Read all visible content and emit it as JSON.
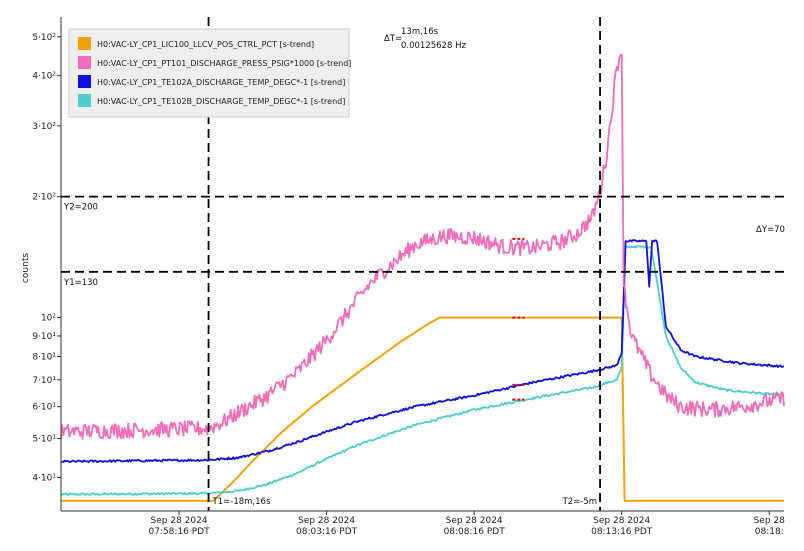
{
  "chart_data": {
    "type": "line",
    "ylabel": "counts",
    "y_scale": "log",
    "ylim": [
      33,
      560
    ],
    "xlim": [
      "2024-09-28 07:54:16",
      "2024-09-28 08:18:46"
    ],
    "legend_position": "top-left",
    "y_ticks": [
      {
        "value": 40,
        "label": "4·10¹"
      },
      {
        "value": 50,
        "label": "5·10¹"
      },
      {
        "value": 60,
        "label": "6·10¹"
      },
      {
        "value": 70,
        "label": "7·10¹"
      },
      {
        "value": 80,
        "label": "8·10¹"
      },
      {
        "value": 90,
        "label": "9·10¹"
      },
      {
        "value": 100,
        "label": "10²"
      },
      {
        "value": 200,
        "label": "2·10²"
      },
      {
        "value": 300,
        "label": "3·10²"
      },
      {
        "value": 400,
        "label": "4·10²"
      },
      {
        "value": 500,
        "label": "5·10²"
      }
    ],
    "x_ticks": [
      {
        "value": "2024-09-28 07:58:16",
        "line1": "Sep 28 2024",
        "line2": "07:58:16 PDT"
      },
      {
        "value": "2024-09-28 08:03:16",
        "line1": "Sep 28 2024",
        "line2": "08:03:16 PDT"
      },
      {
        "value": "2024-09-28 08:08:16",
        "line1": "Sep 28 2024",
        "line2": "08:08:16 PDT"
      },
      {
        "value": "2024-09-28 08:13:16",
        "line1": "Sep 28 2024",
        "line2": "08:13:16 PDT"
      },
      {
        "value": "2024-09-28 08:18:16",
        "line1": "Sep 28",
        "line2": "08:18:"
      }
    ],
    "series": [
      {
        "name": "H0:VAC-LY_CP1_LIC100_LLCV_POS_CTRL_PCT [s-trend]",
        "color": "#f5a20a",
        "noise": 0,
        "points": [
          [
            "2024-09-28 07:54:16",
            35
          ],
          [
            "2024-09-28 07:59:16",
            35
          ],
          [
            "2024-09-28 07:59:26",
            35
          ],
          [
            "2024-09-28 08:00:06",
            39
          ],
          [
            "2024-09-28 08:00:46",
            44
          ],
          [
            "2024-09-28 08:01:46",
            52
          ],
          [
            "2024-09-28 08:02:46",
            60
          ],
          [
            "2024-09-28 08:03:46",
            68
          ],
          [
            "2024-09-28 08:04:46",
            77
          ],
          [
            "2024-09-28 08:05:46",
            87
          ],
          [
            "2024-09-28 08:06:46",
            97
          ],
          [
            "2024-09-28 08:07:06",
            100
          ],
          [
            "2024-09-28 08:13:16",
            100
          ],
          [
            "2024-09-28 08:13:22",
            35
          ],
          [
            "2024-09-28 08:18:46",
            35
          ]
        ]
      },
      {
        "name": "H0:VAC-LY_CP1_PT101_DISCHARGE_PRESS_PSIG*1000 [s-trend]",
        "color": "#f56cb9",
        "noise": 0.045,
        "points": [
          [
            "2024-09-28 07:54:16",
            52
          ],
          [
            "2024-09-28 07:59:16",
            53
          ],
          [
            "2024-09-28 07:59:46",
            55
          ],
          [
            "2024-09-28 08:00:16",
            58
          ],
          [
            "2024-09-28 08:01:16",
            64
          ],
          [
            "2024-09-28 08:02:16",
            73
          ],
          [
            "2024-09-28 08:03:16",
            88
          ],
          [
            "2024-09-28 08:03:46",
            98
          ],
          [
            "2024-09-28 08:04:16",
            110
          ],
          [
            "2024-09-28 08:04:46",
            122
          ],
          [
            "2024-09-28 08:05:16",
            132
          ],
          [
            "2024-09-28 08:06:16",
            152
          ],
          [
            "2024-09-28 08:07:16",
            160
          ],
          [
            "2024-09-28 08:08:16",
            158
          ],
          [
            "2024-09-28 08:09:16",
            150
          ],
          [
            "2024-09-28 08:10:16",
            149
          ],
          [
            "2024-09-28 08:11:16",
            155
          ],
          [
            "2024-09-28 08:11:46",
            162
          ],
          [
            "2024-09-28 08:12:16",
            178
          ],
          [
            "2024-09-28 08:12:32",
            205
          ],
          [
            "2024-09-28 08:12:46",
            258
          ],
          [
            "2024-09-28 08:12:56",
            330
          ],
          [
            "2024-09-28 08:13:06",
            420
          ],
          [
            "2024-09-28 08:13:16",
            470
          ],
          [
            "2024-09-28 08:13:20",
            120
          ],
          [
            "2024-09-28 08:13:36",
            90
          ],
          [
            "2024-09-28 08:14:16",
            72
          ],
          [
            "2024-09-28 08:14:46",
            64
          ],
          [
            "2024-09-28 08:15:16",
            60
          ],
          [
            "2024-09-28 08:16:16",
            59
          ],
          [
            "2024-09-28 08:17:16",
            60
          ],
          [
            "2024-09-28 08:18:46",
            63
          ]
        ]
      },
      {
        "name": "H0:VAC-LY_CP1_TE102A_DISCHARGE_TEMP_DEGC*-1 [s-trend]",
        "color": "#1010e0",
        "noise": 0.006,
        "points": [
          [
            "2024-09-28 07:54:16",
            43.8
          ],
          [
            "2024-09-28 07:59:16",
            44.2
          ],
          [
            "2024-09-28 08:00:16",
            44.8
          ],
          [
            "2024-09-28 08:01:16",
            46.5
          ],
          [
            "2024-09-28 08:02:16",
            49
          ],
          [
            "2024-09-28 08:03:16",
            52
          ],
          [
            "2024-09-28 08:04:16",
            55
          ],
          [
            "2024-09-28 08:05:16",
            57.5
          ],
          [
            "2024-09-28 08:06:16",
            60
          ],
          [
            "2024-09-28 08:08:16",
            64
          ],
          [
            "2024-09-28 08:10:16",
            69
          ],
          [
            "2024-09-28 08:12:16",
            73.5
          ],
          [
            "2024-09-28 08:13:06",
            76
          ],
          [
            "2024-09-28 08:13:16",
            82
          ],
          [
            "2024-09-28 08:13:24",
            155
          ],
          [
            "2024-09-28 08:14:06",
            155
          ],
          [
            "2024-09-28 08:14:12",
            120
          ],
          [
            "2024-09-28 08:14:18",
            155
          ],
          [
            "2024-09-28 08:14:28",
            155
          ],
          [
            "2024-09-28 08:14:46",
            95
          ],
          [
            "2024-09-28 08:15:16",
            83
          ],
          [
            "2024-09-28 08:15:46",
            80
          ],
          [
            "2024-09-28 08:17:16",
            77
          ],
          [
            "2024-09-28 08:18:46",
            75.5
          ]
        ]
      },
      {
        "name": "H0:VAC-LY_CP1_TE102B_DISCHARGE_TEMP_DEGC*-1 [s-trend]",
        "color": "#4dd0cc",
        "noise": 0.006,
        "points": [
          [
            "2024-09-28 07:54:16",
            36.3
          ],
          [
            "2024-09-28 07:59:16",
            36.5
          ],
          [
            "2024-09-28 08:00:16",
            37
          ],
          [
            "2024-09-28 08:01:16",
            38.5
          ],
          [
            "2024-09-28 08:02:16",
            41
          ],
          [
            "2024-09-28 08:03:16",
            44.5
          ],
          [
            "2024-09-28 08:04:16",
            48
          ],
          [
            "2024-09-28 08:05:16",
            51
          ],
          [
            "2024-09-28 08:06:16",
            54
          ],
          [
            "2024-09-28 08:08:16",
            59
          ],
          [
            "2024-09-28 08:10:16",
            63
          ],
          [
            "2024-09-28 08:12:16",
            67
          ],
          [
            "2024-09-28 08:13:06",
            70
          ],
          [
            "2024-09-28 08:13:16",
            75
          ],
          [
            "2024-09-28 08:13:24",
            150
          ],
          [
            "2024-09-28 08:14:16",
            150
          ],
          [
            "2024-09-28 08:14:46",
            90
          ],
          [
            "2024-09-28 08:15:16",
            75
          ],
          [
            "2024-09-28 08:15:46",
            69
          ],
          [
            "2024-09-28 08:16:46",
            66
          ],
          [
            "2024-09-28 08:18:46",
            64
          ]
        ]
      }
    ],
    "gap_markers": [
      {
        "x": "2024-09-28 08:09:46",
        "y": 157,
        "color": "#e00000"
      },
      {
        "x": "2024-09-28 08:09:46",
        "y": 100,
        "color": "#e00000"
      },
      {
        "x": "2024-09-28 08:09:46",
        "y": 68,
        "color": "#e00000"
      },
      {
        "x": "2024-09-28 08:09:46",
        "y": 62.5,
        "color": "#e00000"
      }
    ],
    "cursors": {
      "t1": {
        "x": "2024-09-28 07:59:16",
        "label": "T1=-18m,16s"
      },
      "t2": {
        "x": "2024-09-28 08:12:32",
        "label": "T2=-5m"
      },
      "y1": {
        "value": 130,
        "label": "Y1=130"
      },
      "y2": {
        "value": 200,
        "label": "Y2=200"
      },
      "delta_t_label": "ΔT=",
      "delta_t_line1": "13m,16s",
      "delta_t_line2": "0.00125628 Hz",
      "delta_y_label": "ΔY=70"
    }
  }
}
